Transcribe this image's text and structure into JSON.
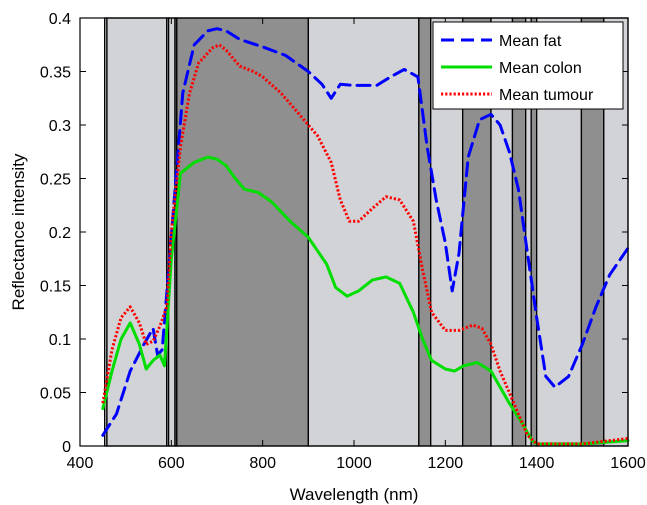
{
  "chart_data": {
    "type": "line",
    "title": "",
    "xlabel": "Wavelength (nm)",
    "ylabel": "Reflectance intensity",
    "xlim": [
      400,
      1600
    ],
    "ylim": [
      0,
      0.4
    ],
    "xticks": [
      400,
      600,
      800,
      1000,
      1200,
      1400,
      1600
    ],
    "yticks": [
      0,
      0.05,
      0.1,
      0.15,
      0.2,
      0.25,
      0.3,
      0.35,
      0.4
    ],
    "grid": false,
    "legend_position": "top-right",
    "background_bands": [
      {
        "x0": 454,
        "x1": 459,
        "shade": "light"
      },
      {
        "x0": 459,
        "x1": 590,
        "shade": "light"
      },
      {
        "x0": 590,
        "x1": 594,
        "shade": "light"
      },
      {
        "x0": 594,
        "x1": 608,
        "shade": "light"
      },
      {
        "x0": 608,
        "x1": 612,
        "shade": "dark"
      },
      {
        "x0": 612,
        "x1": 900,
        "shade": "dark"
      },
      {
        "x0": 900,
        "x1": 1142,
        "shade": "light"
      },
      {
        "x0": 1142,
        "x1": 1168,
        "shade": "dark"
      },
      {
        "x0": 1168,
        "x1": 1238,
        "shade": "light"
      },
      {
        "x0": 1238,
        "x1": 1300,
        "shade": "dark"
      },
      {
        "x0": 1300,
        "x1": 1347,
        "shade": "light"
      },
      {
        "x0": 1347,
        "x1": 1376,
        "shade": "dark"
      },
      {
        "x0": 1376,
        "x1": 1388,
        "shade": "light"
      },
      {
        "x0": 1388,
        "x1": 1400,
        "shade": "dark"
      },
      {
        "x0": 1400,
        "x1": 1498,
        "shade": "light"
      },
      {
        "x0": 1498,
        "x1": 1547,
        "shade": "dark"
      },
      {
        "x0": 1547,
        "x1": 1600,
        "shade": "light"
      }
    ],
    "series": [
      {
        "name": "Mean fat",
        "color": "#0000ff",
        "dash": "dashed",
        "points": [
          [
            450,
            0.01
          ],
          [
            480,
            0.03
          ],
          [
            510,
            0.07
          ],
          [
            540,
            0.095
          ],
          [
            560,
            0.11
          ],
          [
            570,
            0.085
          ],
          [
            580,
            0.09
          ],
          [
            595,
            0.17
          ],
          [
            610,
            0.25
          ],
          [
            625,
            0.33
          ],
          [
            650,
            0.375
          ],
          [
            680,
            0.388
          ],
          [
            700,
            0.39
          ],
          [
            720,
            0.388
          ],
          [
            750,
            0.38
          ],
          [
            800,
            0.373
          ],
          [
            850,
            0.365
          ],
          [
            900,
            0.35
          ],
          [
            930,
            0.338
          ],
          [
            950,
            0.325
          ],
          [
            970,
            0.338
          ],
          [
            1000,
            0.337
          ],
          [
            1050,
            0.337
          ],
          [
            1080,
            0.345
          ],
          [
            1110,
            0.352
          ],
          [
            1140,
            0.345
          ],
          [
            1160,
            0.28
          ],
          [
            1180,
            0.23
          ],
          [
            1200,
            0.19
          ],
          [
            1215,
            0.145
          ],
          [
            1230,
            0.18
          ],
          [
            1250,
            0.27
          ],
          [
            1275,
            0.305
          ],
          [
            1300,
            0.31
          ],
          [
            1320,
            0.3
          ],
          [
            1340,
            0.275
          ],
          [
            1360,
            0.24
          ],
          [
            1380,
            0.18
          ],
          [
            1400,
            0.12
          ],
          [
            1420,
            0.065
          ],
          [
            1440,
            0.055
          ],
          [
            1470,
            0.065
          ],
          [
            1500,
            0.095
          ],
          [
            1530,
            0.13
          ],
          [
            1560,
            0.16
          ],
          [
            1600,
            0.185
          ]
        ]
      },
      {
        "name": "Mean colon",
        "color": "#00dd00",
        "dash": "solid",
        "points": [
          [
            450,
            0.035
          ],
          [
            470,
            0.07
          ],
          [
            490,
            0.1
          ],
          [
            510,
            0.115
          ],
          [
            530,
            0.095
          ],
          [
            545,
            0.072
          ],
          [
            560,
            0.08
          ],
          [
            575,
            0.085
          ],
          [
            585,
            0.075
          ],
          [
            600,
            0.175
          ],
          [
            620,
            0.255
          ],
          [
            650,
            0.265
          ],
          [
            680,
            0.27
          ],
          [
            700,
            0.268
          ],
          [
            720,
            0.262
          ],
          [
            740,
            0.25
          ],
          [
            760,
            0.24
          ],
          [
            790,
            0.237
          ],
          [
            820,
            0.228
          ],
          [
            860,
            0.21
          ],
          [
            900,
            0.195
          ],
          [
            940,
            0.17
          ],
          [
            960,
            0.148
          ],
          [
            985,
            0.14
          ],
          [
            1010,
            0.145
          ],
          [
            1040,
            0.155
          ],
          [
            1070,
            0.158
          ],
          [
            1100,
            0.152
          ],
          [
            1130,
            0.125
          ],
          [
            1150,
            0.1
          ],
          [
            1170,
            0.08
          ],
          [
            1200,
            0.072
          ],
          [
            1220,
            0.07
          ],
          [
            1240,
            0.075
          ],
          [
            1270,
            0.078
          ],
          [
            1300,
            0.07
          ],
          [
            1320,
            0.055
          ],
          [
            1340,
            0.04
          ],
          [
            1370,
            0.02
          ],
          [
            1390,
            0.005
          ],
          [
            1400,
            0.002
          ],
          [
            1500,
            0.002
          ],
          [
            1600,
            0.005
          ]
        ]
      },
      {
        "name": "Mean tumour",
        "color": "#ff0000",
        "dash": "dotted",
        "points": [
          [
            450,
            0.04
          ],
          [
            470,
            0.09
          ],
          [
            490,
            0.12
          ],
          [
            510,
            0.13
          ],
          [
            530,
            0.115
          ],
          [
            545,
            0.095
          ],
          [
            560,
            0.098
          ],
          [
            575,
            0.112
          ],
          [
            590,
            0.13
          ],
          [
            600,
            0.2
          ],
          [
            620,
            0.28
          ],
          [
            640,
            0.33
          ],
          [
            660,
            0.358
          ],
          [
            690,
            0.372
          ],
          [
            705,
            0.375
          ],
          [
            720,
            0.37
          ],
          [
            750,
            0.355
          ],
          [
            780,
            0.35
          ],
          [
            800,
            0.345
          ],
          [
            840,
            0.33
          ],
          [
            880,
            0.31
          ],
          [
            920,
            0.29
          ],
          [
            950,
            0.265
          ],
          [
            970,
            0.23
          ],
          [
            990,
            0.21
          ],
          [
            1010,
            0.21
          ],
          [
            1040,
            0.222
          ],
          [
            1070,
            0.233
          ],
          [
            1100,
            0.23
          ],
          [
            1130,
            0.21
          ],
          [
            1150,
            0.165
          ],
          [
            1170,
            0.125
          ],
          [
            1200,
            0.108
          ],
          [
            1230,
            0.108
          ],
          [
            1260,
            0.113
          ],
          [
            1280,
            0.11
          ],
          [
            1300,
            0.095
          ],
          [
            1320,
            0.07
          ],
          [
            1340,
            0.05
          ],
          [
            1360,
            0.03
          ],
          [
            1380,
            0.01
          ],
          [
            1400,
            0.002
          ],
          [
            1500,
            0.002
          ],
          [
            1600,
            0.007
          ]
        ]
      }
    ]
  }
}
